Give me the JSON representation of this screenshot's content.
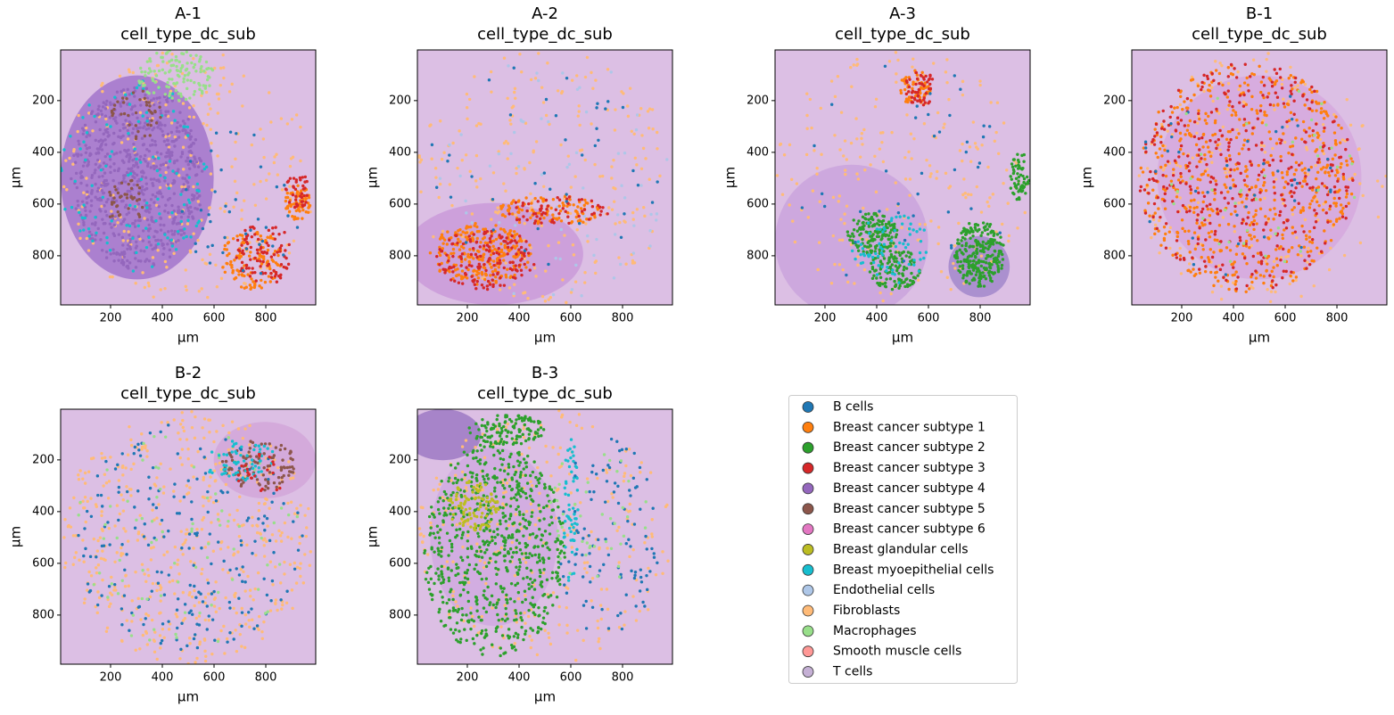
{
  "chart_data": [
    {
      "type": "scatter",
      "title": "A-1",
      "subtitle": "cell_type_dc_sub",
      "xlabel": "µm",
      "ylabel": "µm",
      "xlim": [
        7,
        993
      ],
      "ylim": [
        990,
        4
      ],
      "yinvert": true,
      "xticks": [
        200,
        400,
        600,
        800
      ],
      "yticks": [
        200,
        400,
        600,
        800
      ]
    },
    {
      "type": "scatter",
      "title": "A-2",
      "subtitle": "cell_type_dc_sub",
      "xlabel": "µm",
      "ylabel": "µm",
      "xlim": [
        7,
        993
      ],
      "ylim": [
        990,
        4
      ],
      "yinvert": true,
      "xticks": [
        200,
        400,
        600,
        800
      ],
      "yticks": [
        200,
        400,
        600,
        800
      ]
    },
    {
      "type": "scatter",
      "title": "A-3",
      "subtitle": "cell_type_dc_sub",
      "xlabel": "µm",
      "ylabel": "µm",
      "xlim": [
        7,
        993
      ],
      "ylim": [
        990,
        4
      ],
      "yinvert": true,
      "xticks": [
        200,
        400,
        600,
        800
      ],
      "yticks": [
        200,
        400,
        600,
        800
      ]
    },
    {
      "type": "scatter",
      "title": "B-1",
      "subtitle": "cell_type_dc_sub",
      "xlabel": "µm",
      "ylabel": "µm",
      "xlim": [
        7,
        993
      ],
      "ylim": [
        990,
        4
      ],
      "yinvert": true,
      "xticks": [
        200,
        400,
        600,
        800
      ],
      "yticks": [
        200,
        400,
        600,
        800
      ]
    },
    {
      "type": "scatter",
      "title": "B-2",
      "subtitle": "cell_type_dc_sub",
      "xlabel": "µm",
      "ylabel": "µm",
      "xlim": [
        7,
        993
      ],
      "ylim": [
        990,
        4
      ],
      "yinvert": true,
      "xticks": [
        200,
        400,
        600,
        800
      ],
      "yticks": [
        200,
        400,
        600,
        800
      ]
    },
    {
      "type": "scatter",
      "title": "B-3",
      "subtitle": "cell_type_dc_sub",
      "xlabel": "µm",
      "ylabel": "µm",
      "xlim": [
        7,
        993
      ],
      "ylim": [
        990,
        4
      ],
      "yinvert": true,
      "xticks": [
        200,
        400,
        600,
        800
      ],
      "yticks": [
        200,
        400,
        600,
        800
      ]
    }
  ],
  "legend": {
    "series": [
      {
        "name": "B cells",
        "color": "#1f77b4"
      },
      {
        "name": "Breast cancer subtype 1",
        "color": "#ff7f0e"
      },
      {
        "name": "Breast cancer subtype 2",
        "color": "#2ca02c"
      },
      {
        "name": "Breast cancer subtype 3",
        "color": "#d62728"
      },
      {
        "name": "Breast cancer subtype 4",
        "color": "#9467bd"
      },
      {
        "name": "Breast cancer subtype 5",
        "color": "#8c564b"
      },
      {
        "name": "Breast cancer subtype 6",
        "color": "#e377c2"
      },
      {
        "name": "Breast glandular cells",
        "color": "#bcbd22"
      },
      {
        "name": "Breast myoepithelial cells",
        "color": "#17becf"
      },
      {
        "name": "Endothelial cells",
        "color": "#aec7e8"
      },
      {
        "name": "Fibroblasts",
        "color": "#ffbb78"
      },
      {
        "name": "Macrophages",
        "color": "#98df8a"
      },
      {
        "name": "Smooth muscle cells",
        "color": "#ff9896"
      },
      {
        "name": "T cells",
        "color": "#c5b0d5"
      }
    ]
  }
}
